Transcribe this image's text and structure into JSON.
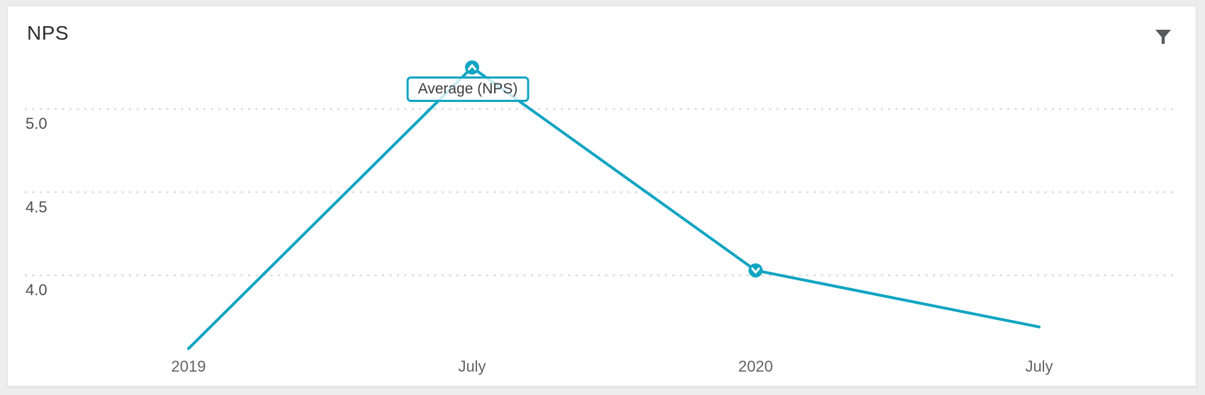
{
  "widget": {
    "title": "NPS"
  },
  "toolbar": {
    "filter_icon": "funnel"
  },
  "chart_data": {
    "type": "line",
    "title": "NPS",
    "categories": [
      "2019",
      "July",
      "2020",
      "July"
    ],
    "series": [
      {
        "name": "Average (NPS)",
        "values": [
          3.56,
          5.25,
          4.03,
          3.69
        ]
      }
    ],
    "yticks": [
      {
        "label": "5.0",
        "value": 5.0
      },
      {
        "label": "4.5",
        "value": 4.5
      },
      {
        "label": "4.0",
        "value": 4.0
      }
    ],
    "ylim": [
      3.35,
      5.45
    ],
    "grid": {
      "horizontal": true,
      "vertical": false,
      "style": "dotted"
    },
    "legend": "none",
    "tooltip": {
      "label": "Average (NPS)",
      "point_index": 1
    },
    "markers": [
      {
        "point_index": 1,
        "direction": "up"
      },
      {
        "point_index": 2,
        "direction": "down"
      }
    ]
  },
  "colors": {
    "accent": "#11a4c3",
    "grid": "#d9d9d9",
    "title_text": "#2d2d2d",
    "tick_text": "#4f4f4f",
    "icon": "#58595b",
    "page_bg": "#ededed",
    "card_bg": "#ffffff"
  }
}
